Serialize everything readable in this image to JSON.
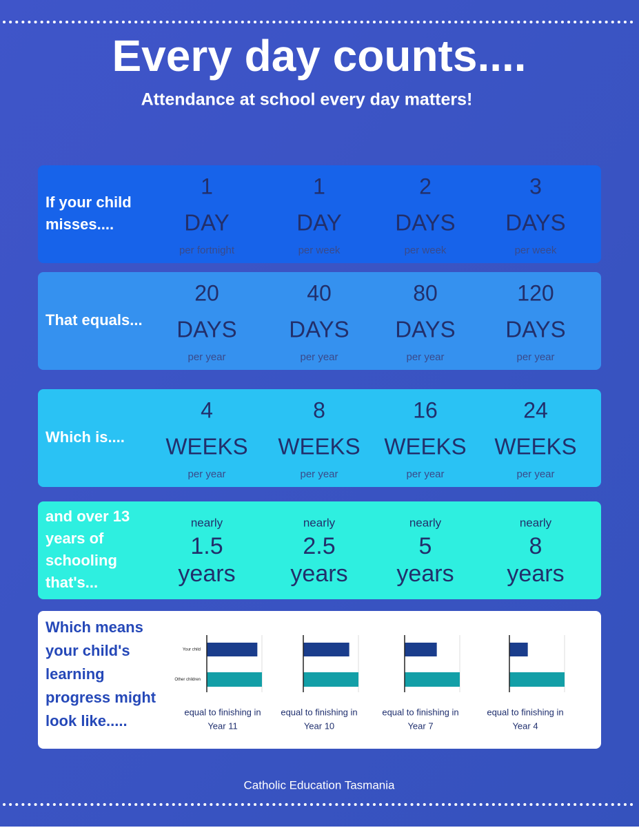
{
  "header": {
    "title": "Every day counts....",
    "subtitle": "Attendance at school every day matters!"
  },
  "rows": [
    {
      "label_lines": [
        "If your child",
        "misses...."
      ],
      "cells": [
        {
          "number": 1,
          "unit": "DAY",
          "note": "per fortnight"
        },
        {
          "number": 1,
          "unit": "DAY",
          "note": "per week"
        },
        {
          "number": 2,
          "unit": "DAYS",
          "note": "per week"
        },
        {
          "number": 3,
          "unit": "DAYS",
          "note": "per week"
        }
      ]
    },
    {
      "label_lines": [
        "That equals..."
      ],
      "cells": [
        {
          "number": 20,
          "unit": "DAYS",
          "note": "per year"
        },
        {
          "number": 40,
          "unit": "DAYS",
          "note": "per year"
        },
        {
          "number": 80,
          "unit": "DAYS",
          "note": "per year"
        },
        {
          "number": 120,
          "unit": "DAYS",
          "note": "per year"
        }
      ]
    },
    {
      "label_lines": [
        "Which is...."
      ],
      "cells": [
        {
          "number": 4,
          "unit": "WEEKS",
          "note": "per year"
        },
        {
          "number": 8,
          "unit": "WEEKS",
          "note": "per year"
        },
        {
          "number": 16,
          "unit": "WEEKS",
          "note": "per year"
        },
        {
          "number": 24,
          "unit": "WEEKS",
          "note": "per year"
        }
      ]
    },
    {
      "label_lines": [
        "and over 13",
        "years of",
        "schooling",
        "that's..."
      ],
      "cells": [
        {
          "prefix": "nearly",
          "number": 1.5,
          "unit": "years"
        },
        {
          "prefix": "nearly",
          "number": 2.5,
          "unit": "years"
        },
        {
          "prefix": "nearly",
          "number": 5,
          "unit": "years"
        },
        {
          "prefix": "nearly",
          "number": 8,
          "unit": "years"
        }
      ]
    }
  ],
  "progress": {
    "label_lines": [
      "Which means",
      "your child's",
      "learning",
      "progress might",
      "look like....."
    ],
    "bar_labels": [
      "Your child",
      "Other children"
    ],
    "xlim": [
      0,
      12
    ],
    "charts": [
      {
        "values": [
          11,
          12
        ],
        "caption": "equal to finishing in",
        "year": "Year 11"
      },
      {
        "values": [
          10,
          12
        ],
        "caption": "equal to finishing in",
        "year": "Year 10"
      },
      {
        "values": [
          7,
          12
        ],
        "caption": "equal to finishing in",
        "year": "Year 7"
      },
      {
        "values": [
          4,
          12
        ],
        "caption": "equal to finishing in",
        "year": "Year 4"
      }
    ]
  },
  "footer": "Catholic Education Tasmania"
}
